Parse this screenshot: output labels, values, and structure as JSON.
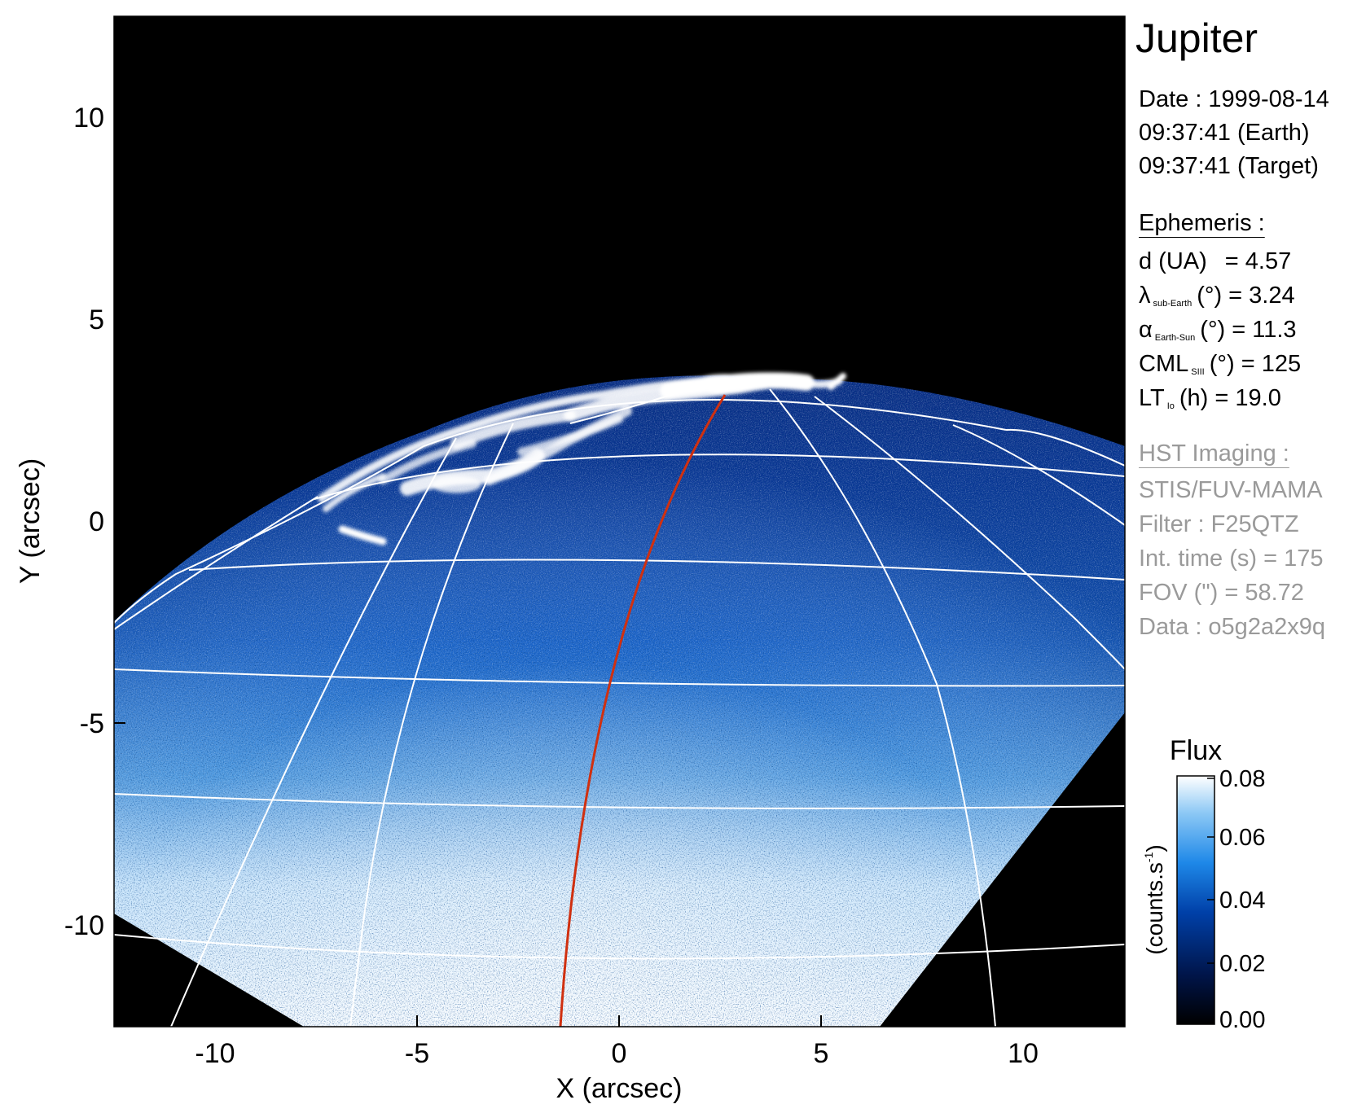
{
  "title": "Jupiter",
  "date_line": "Date : 1999-08-14",
  "time_earth": "09:37:41 (Earth)",
  "time_target": "09:37:41 (Target)",
  "ephemeris": {
    "heading": "Ephemeris :",
    "d_label": "d (UA)",
    "d_value": "= 4.57",
    "lambda_symbol": "λ",
    "lambda_sub": "sub-Earth",
    "lambda_rest": "(°) = 3.24",
    "alpha_symbol": "α",
    "alpha_sub": "Earth-Sun",
    "alpha_rest": "(°) = 11.3",
    "cml_label": "CML",
    "cml_sub": "SIII",
    "cml_rest": "(°) = 125",
    "lt_label": "LT",
    "lt_sub": "Io",
    "lt_rest": "(h) = 19.0"
  },
  "hst": {
    "heading": "HST Imaging :",
    "instrument": "STIS/FUV-MAMA",
    "filter": "Filter : F25QTZ",
    "int_time": "Int. time (s) = 175",
    "fov": "FOV (\") = 58.72",
    "data": "Data : o5g2a2x9q"
  },
  "axes": {
    "xlabel": "X (arcsec)",
    "ylabel": "Y (arcsec)",
    "xlim": [
      -12.5,
      12.5
    ],
    "ylim": [
      -12.5,
      12.5
    ],
    "xticks": [
      "-10",
      "-5",
      "0",
      "5",
      "10"
    ],
    "yticks": [
      "10",
      "5",
      "0",
      "-5",
      "-10"
    ]
  },
  "colorbar": {
    "title": "Flux",
    "unit_label": "(counts.s",
    "unit_sup": "-1",
    "unit_close": ")",
    "ticks": [
      "0.08",
      "0.06",
      "0.04",
      "0.02",
      "0.00"
    ],
    "range": [
      0.0,
      0.08
    ],
    "colors": [
      "#000000",
      "#00154a",
      "#0040a8",
      "#1e88e8",
      "#8cc8f5",
      "#ffffff"
    ]
  },
  "colors": {
    "background": "#000000",
    "grid": "#ffffff",
    "meridian": "#d03010",
    "grey_text": "#9a9a9a"
  }
}
